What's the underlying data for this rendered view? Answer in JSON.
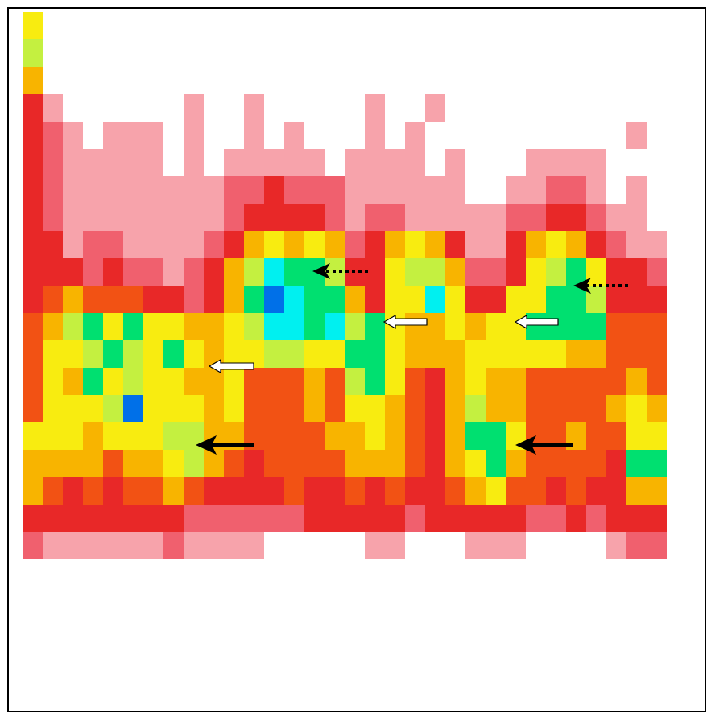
{
  "chart_data": {
    "type": "heatmap",
    "tick_labels": false,
    "cells": [
      [
        6,
        0,
        0,
        0,
        0,
        0,
        0,
        0,
        0,
        0,
        0,
        0,
        0,
        0,
        0,
        0,
        0,
        0,
        0,
        0,
        0,
        0,
        0,
        0,
        0,
        0,
        0,
        0,
        0,
        0,
        0,
        0
      ],
      [
        7,
        0,
        0,
        0,
        0,
        0,
        0,
        0,
        0,
        0,
        0,
        0,
        0,
        0,
        0,
        0,
        0,
        0,
        0,
        0,
        0,
        0,
        0,
        0,
        0,
        0,
        0,
        0,
        0,
        0,
        0,
        0
      ],
      [
        5,
        0,
        0,
        0,
        0,
        0,
        0,
        0,
        0,
        0,
        0,
        0,
        0,
        0,
        0,
        0,
        0,
        0,
        0,
        0,
        0,
        0,
        0,
        0,
        0,
        0,
        0,
        0,
        0,
        0,
        0,
        0
      ],
      [
        3,
        1,
        0,
        0,
        0,
        0,
        0,
        0,
        1,
        0,
        0,
        1,
        0,
        0,
        0,
        0,
        0,
        1,
        0,
        0,
        1,
        0,
        0,
        0,
        0,
        0,
        0,
        0,
        0,
        0,
        0,
        0
      ],
      [
        3,
        2,
        1,
        0,
        1,
        1,
        1,
        0,
        1,
        0,
        0,
        1,
        0,
        1,
        0,
        0,
        0,
        1,
        0,
        1,
        0,
        0,
        0,
        0,
        0,
        0,
        0,
        0,
        0,
        0,
        1,
        0
      ],
      [
        3,
        2,
        1,
        1,
        1,
        1,
        1,
        0,
        1,
        0,
        1,
        1,
        1,
        1,
        1,
        0,
        1,
        1,
        1,
        1,
        0,
        1,
        0,
        0,
        0,
        1,
        1,
        1,
        1,
        0,
        0,
        0
      ],
      [
        3,
        2,
        1,
        1,
        1,
        1,
        1,
        1,
        1,
        1,
        2,
        2,
        3,
        2,
        2,
        2,
        1,
        1,
        1,
        1,
        1,
        1,
        0,
        0,
        1,
        1,
        2,
        2,
        1,
        0,
        1,
        0
      ],
      [
        3,
        2,
        1,
        1,
        1,
        1,
        1,
        1,
        1,
        1,
        2,
        3,
        3,
        3,
        3,
        2,
        1,
        2,
        2,
        1,
        1,
        1,
        1,
        1,
        2,
        2,
        3,
        3,
        2,
        1,
        1,
        0
      ],
      [
        3,
        3,
        1,
        2,
        2,
        1,
        1,
        1,
        1,
        2,
        3,
        5,
        6,
        5,
        6,
        5,
        2,
        3,
        5,
        6,
        5,
        3,
        1,
        1,
        3,
        5,
        6,
        5,
        3,
        2,
        1,
        1
      ],
      [
        3,
        3,
        3,
        2,
        3,
        2,
        2,
        1,
        2,
        3,
        5,
        7,
        9,
        8,
        8,
        7,
        3,
        3,
        6,
        7,
        7,
        5,
        2,
        2,
        3,
        6,
        7,
        8,
        6,
        3,
        3,
        2
      ],
      [
        3,
        4,
        5,
        4,
        4,
        4,
        3,
        3,
        2,
        3,
        5,
        8,
        10,
        9,
        8,
        8,
        5,
        3,
        6,
        6,
        9,
        6,
        3,
        3,
        6,
        6,
        8,
        8,
        7,
        3,
        3,
        3
      ],
      [
        4,
        5,
        7,
        8,
        6,
        8,
        6,
        6,
        5,
        5,
        6,
        7,
        9,
        9,
        8,
        9,
        7,
        8,
        6,
        5,
        5,
        6,
        5,
        6,
        6,
        8,
        8,
        8,
        8,
        4,
        4,
        4
      ],
      [
        4,
        6,
        6,
        7,
        8,
        7,
        6,
        8,
        6,
        5,
        6,
        6,
        7,
        7,
        6,
        6,
        8,
        8,
        6,
        5,
        5,
        5,
        6,
        6,
        6,
        6,
        6,
        5,
        5,
        4,
        4,
        4
      ],
      [
        4,
        6,
        5,
        8,
        6,
        7,
        6,
        6,
        5,
        5,
        6,
        4,
        4,
        4,
        5,
        4,
        7,
        8,
        6,
        4,
        3,
        5,
        6,
        5,
        5,
        4,
        4,
        4,
        4,
        4,
        5,
        4
      ],
      [
        4,
        6,
        6,
        6,
        7,
        10,
        6,
        6,
        6,
        5,
        6,
        4,
        4,
        4,
        5,
        4,
        6,
        6,
        5,
        4,
        3,
        5,
        7,
        5,
        5,
        4,
        4,
        4,
        4,
        5,
        6,
        5
      ],
      [
        6,
        6,
        6,
        5,
        6,
        6,
        6,
        7,
        7,
        5,
        5,
        4,
        4,
        4,
        4,
        5,
        5,
        6,
        5,
        4,
        3,
        5,
        8,
        8,
        6,
        4,
        4,
        5,
        4,
        4,
        6,
        6
      ],
      [
        5,
        5,
        5,
        5,
        4,
        5,
        5,
        6,
        7,
        5,
        4,
        3,
        4,
        4,
        4,
        4,
        5,
        5,
        5,
        4,
        3,
        5,
        6,
        8,
        5,
        4,
        4,
        4,
        4,
        3,
        8,
        8
      ],
      [
        5,
        4,
        3,
        4,
        3,
        4,
        4,
        5,
        4,
        3,
        3,
        3,
        3,
        4,
        3,
        3,
        4,
        3,
        4,
        3,
        3,
        4,
        5,
        6,
        4,
        4,
        3,
        4,
        3,
        3,
        5,
        5
      ],
      [
        3,
        3,
        3,
        3,
        3,
        3,
        3,
        3,
        2,
        2,
        2,
        2,
        2,
        2,
        3,
        3,
        3,
        3,
        3,
        2,
        3,
        3,
        3,
        3,
        3,
        2,
        2,
        3,
        2,
        3,
        3,
        3
      ],
      [
        2,
        1,
        1,
        1,
        1,
        1,
        1,
        2,
        1,
        1,
        1,
        1,
        0,
        0,
        0,
        0,
        0,
        1,
        1,
        0,
        0,
        0,
        1,
        1,
        1,
        0,
        0,
        0,
        0,
        1,
        2,
        2
      ]
    ]
  }
}
